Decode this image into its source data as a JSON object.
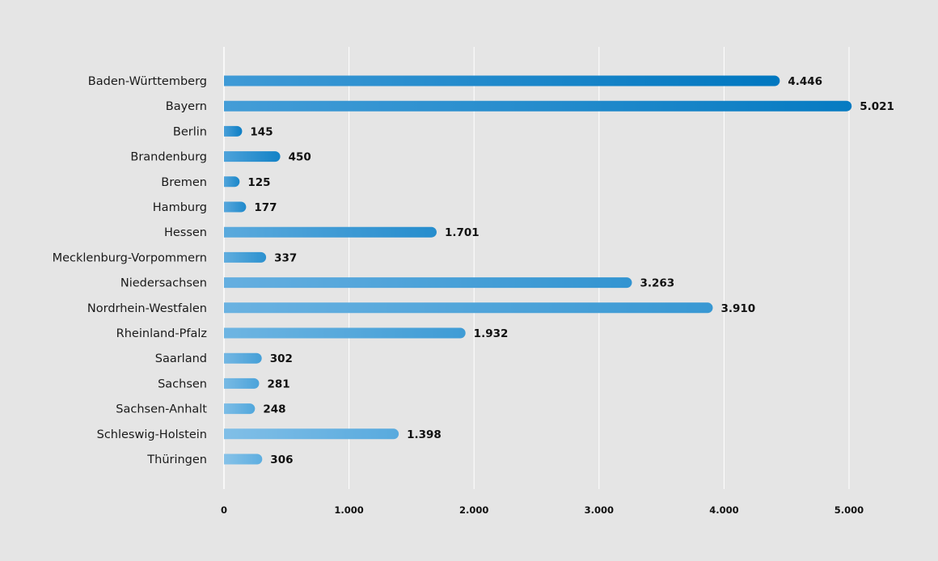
{
  "chart_data": {
    "type": "bar",
    "orientation": "horizontal",
    "title": "",
    "xlabel": "",
    "ylabel": "",
    "xlim": [
      0,
      5000
    ],
    "x_ticks": [
      {
        "value": 0,
        "label": "0"
      },
      {
        "value": 1000,
        "label": "1.000"
      },
      {
        "value": 2000,
        "label": "2.000"
      },
      {
        "value": 3000,
        "label": "3.000"
      },
      {
        "value": 4000,
        "label": "4.000"
      },
      {
        "value": 5000,
        "label": "5.000"
      }
    ],
    "grid": "vertical",
    "legend": "none",
    "categories": [
      "Baden-Württemberg",
      "Bayern",
      "Berlin",
      "Brandenburg",
      "Bremen",
      "Hamburg",
      "Hessen",
      "Mecklenburg-Vorpommern",
      "Niedersachsen",
      "Nordrhein-Westfalen",
      "Rheinland-Pfalz",
      "Saarland",
      "Sachsen",
      "Sachsen-Anhalt",
      "Schleswig-Holstein",
      "Thüringen"
    ],
    "values": [
      4446,
      5021,
      145,
      450,
      125,
      177,
      1701,
      337,
      3263,
      3910,
      1932,
      302,
      281,
      248,
      1398,
      306
    ],
    "value_labels": [
      "4.446",
      "5.021",
      "145",
      "450",
      "125",
      "177",
      "1.701",
      "337",
      "3.263",
      "3.910",
      "1.932",
      "302",
      "281",
      "248",
      "1.398",
      "306"
    ],
    "colors": {
      "background": "#e5e5e5",
      "gridline": "#ffffff",
      "bar_start_top": "#3f9ad6",
      "bar_end_top": "#0077c0",
      "bar_start_bottom": "#86c2e8",
      "bar_end_bottom": "#5eaee0"
    }
  }
}
